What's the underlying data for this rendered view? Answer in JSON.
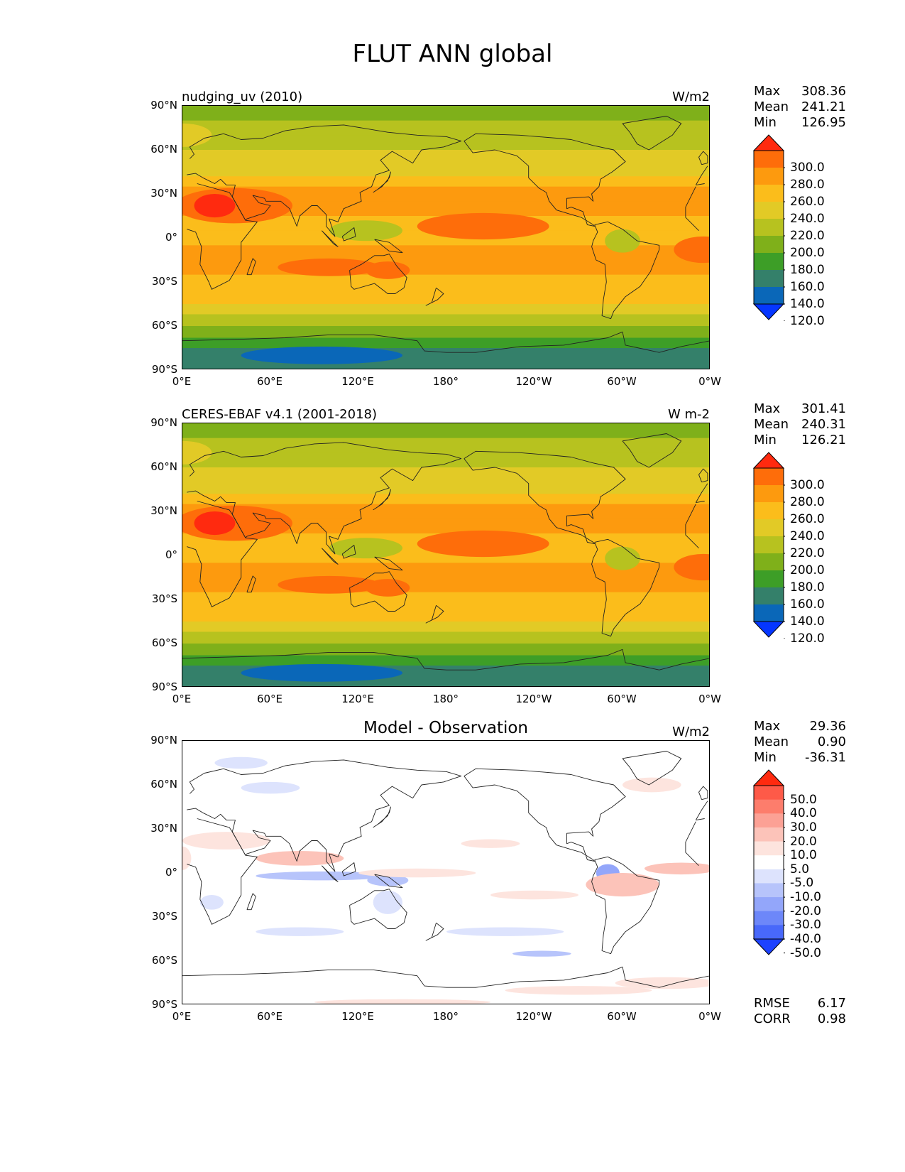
{
  "figure": {
    "title": "FLUT ANN global"
  },
  "lat_ticks": [
    "90°N",
    "60°N",
    "30°N",
    "0°",
    "30°S",
    "60°S",
    "90°S"
  ],
  "lon_ticks": [
    "0°E",
    "60°E",
    "120°E",
    "180°",
    "120°W",
    "60°W",
    "0°W"
  ],
  "panels": [
    {
      "title": "nudging_uv (2010)",
      "title_style": "left",
      "units": "W/m2",
      "stats": [
        {
          "label": "Max",
          "value": "308.36"
        },
        {
          "label": "Mean",
          "value": "241.21"
        },
        {
          "label": "Min",
          "value": "126.95"
        }
      ],
      "colorbar": {
        "labels": [
          "300.0",
          "280.0",
          "260.0",
          "240.0",
          "220.0",
          "200.0",
          "180.0",
          "160.0",
          "140.0",
          "120.0"
        ],
        "colors": [
          "#ff2a0f",
          "#fe6d0a",
          "#fd9a0e",
          "#fbbd1b",
          "#e2ca26",
          "#b7c21f",
          "#7fb01a",
          "#3d9e27",
          "#34806a",
          "#0a67b8",
          "#0536ff"
        ]
      },
      "extra_stats": []
    },
    {
      "title": "CERES-EBAF v4.1 (2001-2018)",
      "title_style": "left",
      "units": "W m-2",
      "stats": [
        {
          "label": "Max",
          "value": "301.41"
        },
        {
          "label": "Mean",
          "value": "240.31"
        },
        {
          "label": "Min",
          "value": "126.21"
        }
      ],
      "colorbar": {
        "labels": [
          "300.0",
          "280.0",
          "260.0",
          "240.0",
          "220.0",
          "200.0",
          "180.0",
          "160.0",
          "140.0",
          "120.0"
        ],
        "colors": [
          "#ff2a0f",
          "#fe6d0a",
          "#fd9a0e",
          "#fbbd1b",
          "#e2ca26",
          "#b7c21f",
          "#7fb01a",
          "#3d9e27",
          "#34806a",
          "#0a67b8",
          "#0536ff"
        ]
      },
      "extra_stats": []
    },
    {
      "title": "Model - Observation",
      "title_style": "center",
      "units": "W/m2",
      "stats": [
        {
          "label": "Max",
          "value": "29.36"
        },
        {
          "label": "Mean",
          "value": "0.90"
        },
        {
          "label": "Min",
          "value": "-36.31"
        }
      ],
      "colorbar": {
        "labels": [
          "50.0",
          "40.0",
          "30.0",
          "20.0",
          "10.0",
          "5.0",
          "-5.0",
          "-10.0",
          "-20.0",
          "-30.0",
          "-40.0",
          "-50.0"
        ],
        "colors": [
          "#ff2a0f",
          "#fe5a48",
          "#fd7d6c",
          "#fca195",
          "#fcc3b9",
          "#fde4de",
          "#ffffff",
          "#dde3fd",
          "#b7c4fb",
          "#93a6fa",
          "#6d87f9",
          "#4868fa",
          "#1d42ff"
        ]
      },
      "extra_stats": [
        {
          "label": "RMSE",
          "value": "6.17"
        },
        {
          "label": "CORR",
          "value": "0.98"
        }
      ]
    }
  ]
}
